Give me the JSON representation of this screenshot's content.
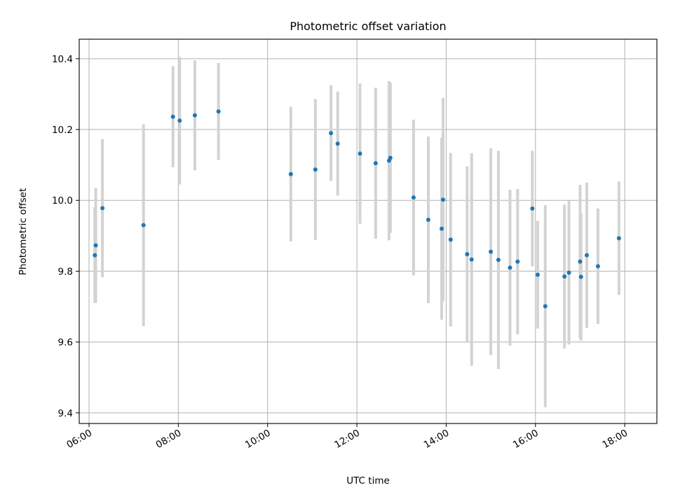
{
  "chart_data": {
    "type": "scatter",
    "title": "Photometric offset variation",
    "xlabel": "UTC time",
    "ylabel": "Photometric offset",
    "xlim": [
      5.78,
      18.72
    ],
    "ylim": [
      9.37,
      10.455
    ],
    "x_ticks": [
      {
        "value": 6,
        "label": "06:00"
      },
      {
        "value": 8,
        "label": "08:00"
      },
      {
        "value": 10,
        "label": "10:00"
      },
      {
        "value": 12,
        "label": "12:00"
      },
      {
        "value": 14,
        "label": "14:00"
      },
      {
        "value": 16,
        "label": "16:00"
      },
      {
        "value": 18,
        "label": "18:00"
      }
    ],
    "y_ticks": [
      {
        "value": 9.4,
        "label": "9.4"
      },
      {
        "value": 9.6,
        "label": "9.6"
      },
      {
        "value": 9.8,
        "label": "9.8"
      },
      {
        "value": 10.0,
        "label": "10.0"
      },
      {
        "value": 10.2,
        "label": "10.2"
      },
      {
        "value": 10.4,
        "label": "10.4"
      }
    ],
    "grid": true,
    "x_tick_rotation": "rotated",
    "colors": {
      "point": "#1f77b4",
      "errorbar": "#d3d3d3",
      "grid": "#b0b0b0"
    },
    "series": [
      {
        "points": [
          {
            "x": 6.13,
            "y": 9.845,
            "err": 0.135
          },
          {
            "x": 6.15,
            "y": 9.873,
            "err": 0.162
          },
          {
            "x": 6.3,
            "y": 9.978,
            "err": 0.195
          },
          {
            "x": 7.22,
            "y": 9.93,
            "err": 0.285
          },
          {
            "x": 7.88,
            "y": 10.236,
            "err": 0.143
          },
          {
            "x": 8.03,
            "y": 10.225,
            "err": 0.18
          },
          {
            "x": 8.37,
            "y": 10.24,
            "err": 0.155
          },
          {
            "x": 8.9,
            "y": 10.251,
            "err": 0.137
          },
          {
            "x": 10.52,
            "y": 10.074,
            "err": 0.19
          },
          {
            "x": 11.07,
            "y": 10.087,
            "err": 0.199
          },
          {
            "x": 11.42,
            "y": 10.19,
            "err": 0.135
          },
          {
            "x": 11.57,
            "y": 10.16,
            "err": 0.147
          },
          {
            "x": 12.07,
            "y": 10.132,
            "err": 0.198
          },
          {
            "x": 12.42,
            "y": 10.105,
            "err": 0.213
          },
          {
            "x": 12.72,
            "y": 10.112,
            "err": 0.225
          },
          {
            "x": 12.75,
            "y": 10.12,
            "err": 0.212
          },
          {
            "x": 13.27,
            "y": 10.008,
            "err": 0.22
          },
          {
            "x": 13.6,
            "y": 9.945,
            "err": 0.235
          },
          {
            "x": 13.9,
            "y": 9.92,
            "err": 0.257
          },
          {
            "x": 13.93,
            "y": 10.002,
            "err": 0.287
          },
          {
            "x": 14.1,
            "y": 9.889,
            "err": 0.245
          },
          {
            "x": 14.47,
            "y": 9.848,
            "err": 0.248
          },
          {
            "x": 14.57,
            "y": 9.833,
            "err": 0.3
          },
          {
            "x": 15.0,
            "y": 9.855,
            "err": 0.292
          },
          {
            "x": 15.17,
            "y": 9.832,
            "err": 0.308
          },
          {
            "x": 15.43,
            "y": 9.81,
            "err": 0.22
          },
          {
            "x": 15.6,
            "y": 9.827,
            "err": 0.205
          },
          {
            "x": 15.93,
            "y": 9.977,
            "err": 0.163
          },
          {
            "x": 16.05,
            "y": 9.79,
            "err": 0.152
          },
          {
            "x": 16.22,
            "y": 9.701,
            "err": 0.285
          },
          {
            "x": 16.65,
            "y": 9.785,
            "err": 0.203
          },
          {
            "x": 16.75,
            "y": 9.796,
            "err": 0.203
          },
          {
            "x": 17.0,
            "y": 9.827,
            "err": 0.217
          },
          {
            "x": 17.02,
            "y": 9.784,
            "err": 0.18
          },
          {
            "x": 17.15,
            "y": 9.845,
            "err": 0.205
          },
          {
            "x": 17.4,
            "y": 9.814,
            "err": 0.163
          },
          {
            "x": 17.87,
            "y": 9.893,
            "err": 0.16
          }
        ]
      }
    ]
  }
}
